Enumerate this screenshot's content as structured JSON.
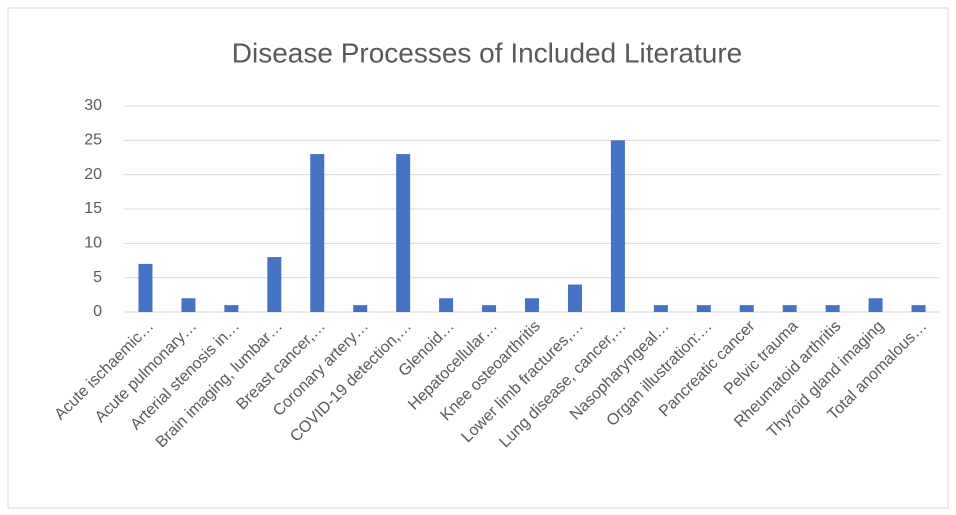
{
  "chart_data": {
    "type": "bar",
    "title": "Disease Processes of Included Literature",
    "categories": [
      "Acute ischaemic…",
      "Acute pulmonary…",
      "Arterial stenosis in…",
      "Brain imaging, lumbar…",
      "Breast cancer,…",
      "Coronary artery…",
      "COVID-19 detection,…",
      "Glenoid…",
      "Hepatocellular…",
      "Knee osteoarthritis",
      "Lower limb fractures,…",
      "Lung disease, cancer,…",
      "Nasopharyngeal…",
      "Organ illustration:…",
      "Pancreatic cancer",
      "Pelvic trauma",
      "Rheumatoid arthritis",
      "Thyroid gland imaging",
      "Total anomalous…"
    ],
    "values": [
      7,
      2,
      1,
      8,
      23,
      1,
      23,
      2,
      1,
      2,
      4,
      25,
      1,
      1,
      1,
      1,
      1,
      2,
      1
    ],
    "color": "#4472c4",
    "ylim": [
      0,
      30
    ],
    "yticks": [
      0,
      5,
      10,
      15,
      20,
      25,
      30
    ],
    "grid": true
  }
}
